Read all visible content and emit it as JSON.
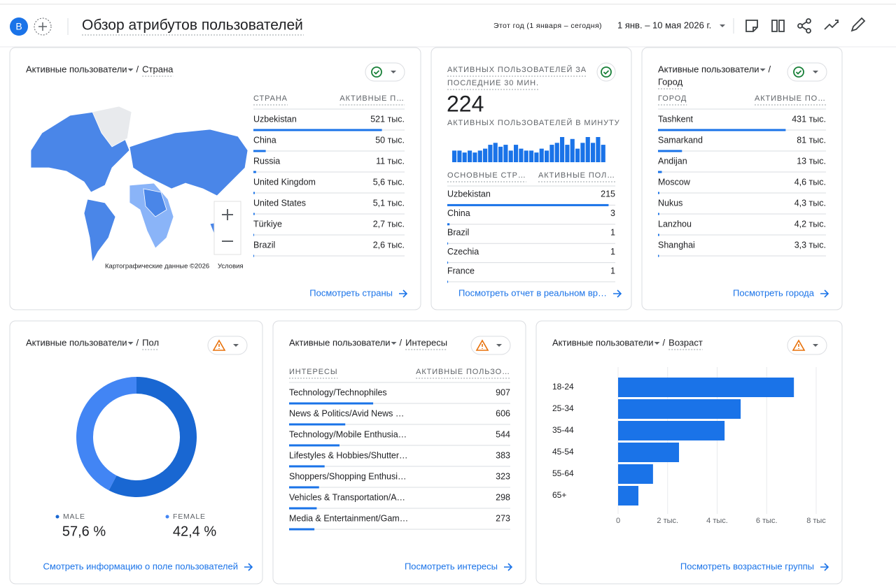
{
  "header": {
    "avatar": "B",
    "title": "Обзор атрибутов пользователей",
    "period": "Этот год (1 января – сегодня)",
    "date_range": "1 янв. – 10 мая 2026 г."
  },
  "country": {
    "title": "Активные пользователи",
    "separator": "/",
    "dimension": "Страна",
    "columns": [
      "СТРАНА",
      "АКТИВНЫЕ П…"
    ],
    "rows": [
      "Uzbekistan",
      "China",
      "Russia",
      "United Kingdom",
      "United States",
      "Türkiye",
      "Brazil"
    ],
    "values": [
      521000,
      50000,
      11000,
      5600,
      5100,
      2700,
      2600
    ],
    "value_labels": [
      "521 тыс.",
      "50 тыс.",
      "11 тыс.",
      "5,6 тыс.",
      "5,1 тыс.",
      "2,7 тыс.",
      "2,6 тыс."
    ],
    "map_attribution": "Картографические данные ©2026",
    "map_terms": "Условия",
    "link": "Посмотреть страны"
  },
  "realtime": {
    "title_lines": [
      "АКТИВНЫХ ПОЛЬЗОВАТЕЛЕЙ ЗА",
      "ПОСЛЕДНИЕ 30 МИН."
    ],
    "value": 224,
    "per_minute_label": "АКТИВНЫХ ПОЛЬЗОВАТЕЛЕЙ В МИНУТУ",
    "per_minute_values": [
      6,
      6,
      5,
      6,
      5,
      6,
      7,
      9,
      10,
      8,
      9,
      6,
      9,
      7,
      6,
      6,
      5,
      7,
      6,
      9,
      10,
      13,
      9,
      12,
      7,
      10,
      13,
      10,
      13,
      9
    ],
    "columns": [
      "ОСНОВНЫЕ СТР…",
      "АКТИВНЫЕ ПОЛ…"
    ],
    "rows": [
      "Uzbekistan",
      "China",
      "Brazil",
      "Czechia",
      "France"
    ],
    "values": [
      215,
      3,
      1,
      1,
      1
    ],
    "link": "Посмотреть отчет в реальном вр…"
  },
  "city": {
    "title": "Активные пользователи",
    "separator": "/",
    "dimension": "Город",
    "columns": [
      "ГОРОД",
      "АКТИВНЫЕ ПО…"
    ],
    "rows": [
      "Tashkent",
      "Samarkand",
      "Andijan",
      "Moscow",
      "Nukus",
      "Lanzhou",
      "Shanghai"
    ],
    "values": [
      431000,
      81000,
      13000,
      4600,
      4300,
      4200,
      3300
    ],
    "value_labels": [
      "431 тыс.",
      "81 тыс.",
      "13 тыс.",
      "4,6 тыс.",
      "4,3 тыс.",
      "4,2 тыс.",
      "3,3 тыс."
    ],
    "link": "Посмотреть города"
  },
  "gender": {
    "title": "Активные пользователи",
    "separator": "/",
    "dimension": "Пол",
    "categories": [
      "MALE",
      "FEMALE"
    ],
    "values": [
      57.6,
      42.4
    ],
    "value_labels": [
      "57,6 %",
      "42,4 %"
    ],
    "colors": [
      "#1967d2",
      "#4285f4"
    ],
    "link": "Смотреть информацию о поле пользователей"
  },
  "interests": {
    "title": "Активные пользователи",
    "separator": "/",
    "dimension": "Интересы",
    "columns": [
      "ИНТЕРЕСЫ",
      "АКТИВНЫЕ ПОЛЬЗО…"
    ],
    "rows": [
      "Technology/Technophiles",
      "News & Politics/Avid News …",
      "Technology/Mobile Enthusia…",
      "Lifestyles & Hobbies/Shutter…",
      "Shoppers/Shopping Enthusi…",
      "Vehicles & Transportation/A…",
      "Media & Entertainment/Gam…"
    ],
    "values": [
      907,
      606,
      544,
      383,
      323,
      298,
      273
    ],
    "link": "Посмотреть интересы"
  },
  "age": {
    "type": "bar",
    "title": "Активные пользователи",
    "separator": "/",
    "dimension": "Возраст",
    "categories": [
      "18-24",
      "25-34",
      "35-44",
      "45-54",
      "55-64",
      "65+"
    ],
    "values": [
      7100,
      4950,
      4300,
      2460,
      1410,
      820
    ],
    "color": "#1a73e8",
    "xlim": [
      0,
      8000
    ],
    "xticks": [
      0,
      {
        "value": 2000,
        "label": "2 тыс."
      },
      {
        "value": 4000,
        "label": "4 тыс."
      },
      {
        "value": 6000,
        "label": "6 тыс."
      },
      {
        "value": 8000,
        "label": "8 тыс"
      }
    ],
    "grid": true,
    "link": "Посмотреть возрастные группы"
  }
}
